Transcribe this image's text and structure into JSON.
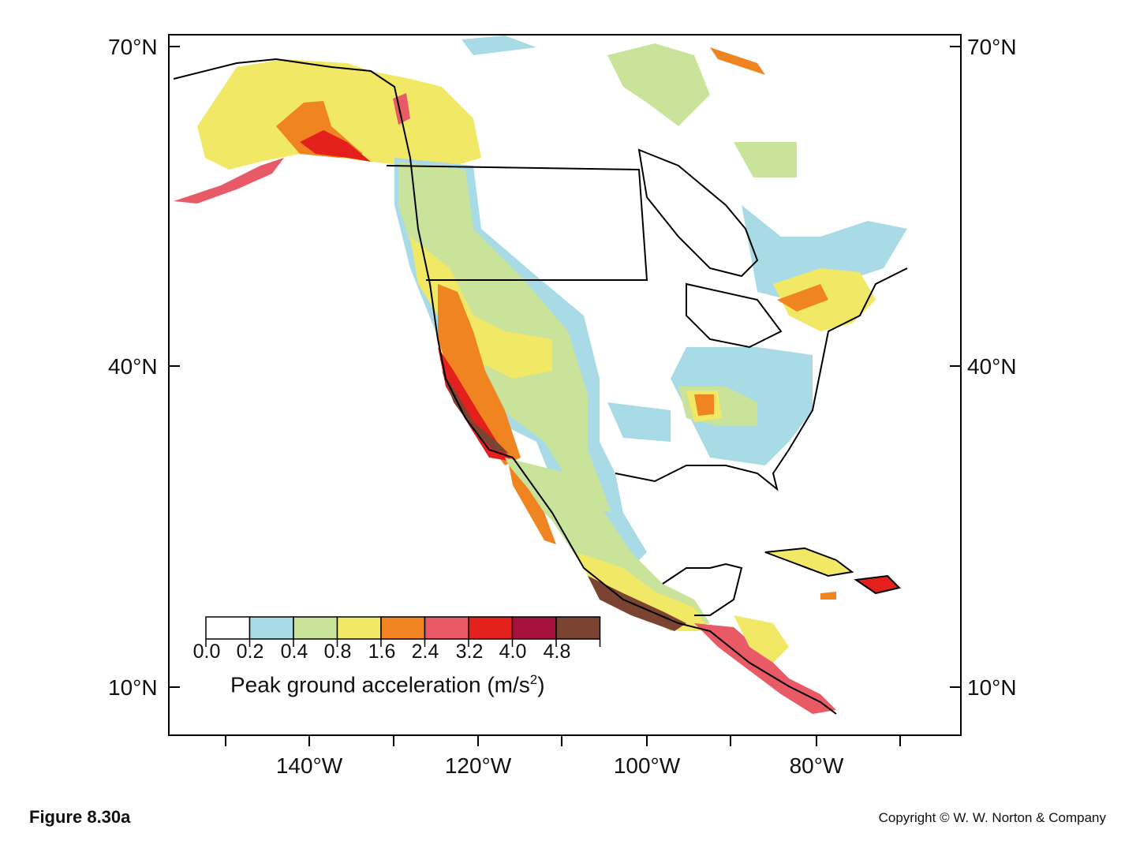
{
  "figure": {
    "label": "Figure 8.30a",
    "copyright": "Copyright © W. W. Norton & Company"
  },
  "axes": {
    "lat_left": [
      "70°N",
      "40°N",
      "10°N"
    ],
    "lat_right": [
      "70°N",
      "40°N",
      "10°N"
    ],
    "lon": [
      "140°W",
      "120°W",
      "100°W",
      "80°W"
    ]
  },
  "legend": {
    "title_prefix": "Peak ground acceleration (m/s",
    "title_sup": "2",
    "title_suffix": ")",
    "ticks": [
      "0.0",
      "0.2",
      "0.4",
      "0.8",
      "1.6",
      "2.4",
      "3.2",
      "4.0",
      "4.8"
    ],
    "classes": [
      {
        "range": "0.0–0.2",
        "color": "#ffffff"
      },
      {
        "range": "0.2–0.4",
        "color": "#a8dbe6"
      },
      {
        "range": "0.4–0.8",
        "color": "#c9e39a"
      },
      {
        "range": "0.8–1.6",
        "color": "#f1e866"
      },
      {
        "range": "1.6–2.4",
        "color": "#ef8420"
      },
      {
        "range": "2.4–3.2",
        "color": "#e85a66"
      },
      {
        "range": "3.2–4.0",
        "color": "#e3201c"
      },
      {
        "range": "4.0–4.8",
        "color": "#a6123e"
      },
      {
        "range": "4.8+",
        "color": "#7b4432"
      }
    ]
  }
}
